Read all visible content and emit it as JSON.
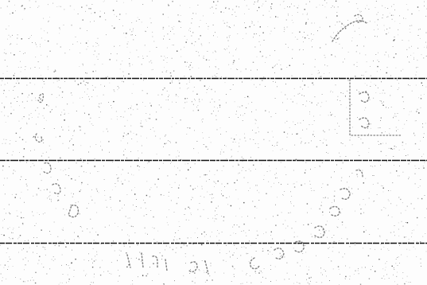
{
  "document": {
    "background_color": "#fdfdfd",
    "ink_color": "#111111"
  },
  "rules": [
    {
      "id": "rule-1"
    },
    {
      "id": "rule-2"
    },
    {
      "id": "rule-3"
    }
  ],
  "stamp": {
    "description_icon": "circular-postmark-stamp-icon",
    "ink_color": "#222222"
  }
}
